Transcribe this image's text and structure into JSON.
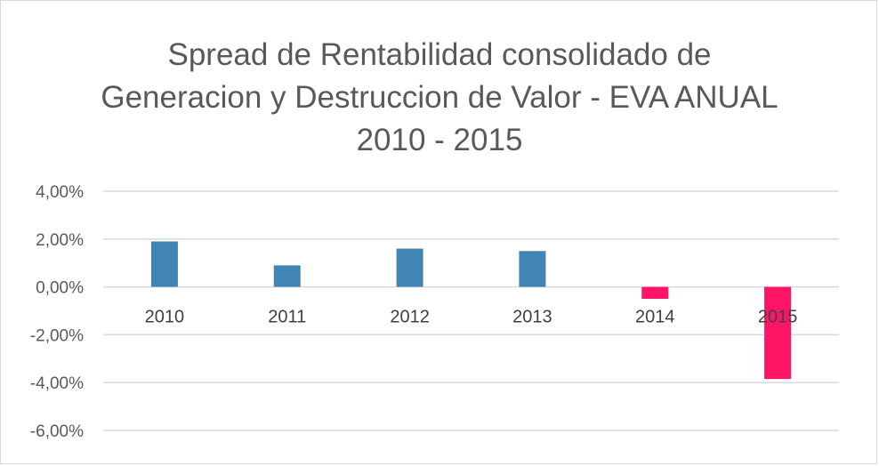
{
  "chart_data": {
    "type": "bar",
    "title_lines": [
      "Spread de Rentabilidad consolidado de",
      "Generacion y Destruccion de Valor - EVA ANUAL",
      "2010 - 2015"
    ],
    "categories": [
      "2010",
      "2011",
      "2012",
      "2013",
      "2014",
      "2015"
    ],
    "values": [
      1.9,
      0.9,
      1.6,
      1.5,
      -0.5,
      -3.85
    ],
    "unit": "%",
    "ylim": [
      -6,
      4
    ],
    "y_ticks": [
      4,
      2,
      0,
      -2,
      -4,
      -6
    ],
    "y_tick_labels": [
      "4,00%",
      "2,00%",
      "0,00%",
      "-2,00%",
      "-4,00%",
      "-6,00%"
    ],
    "grid": true,
    "legend": "none",
    "colors": {
      "positive": "#4285b4",
      "negative": "#ff1466",
      "grid": "#d9d9d9",
      "text": "#595959"
    }
  }
}
